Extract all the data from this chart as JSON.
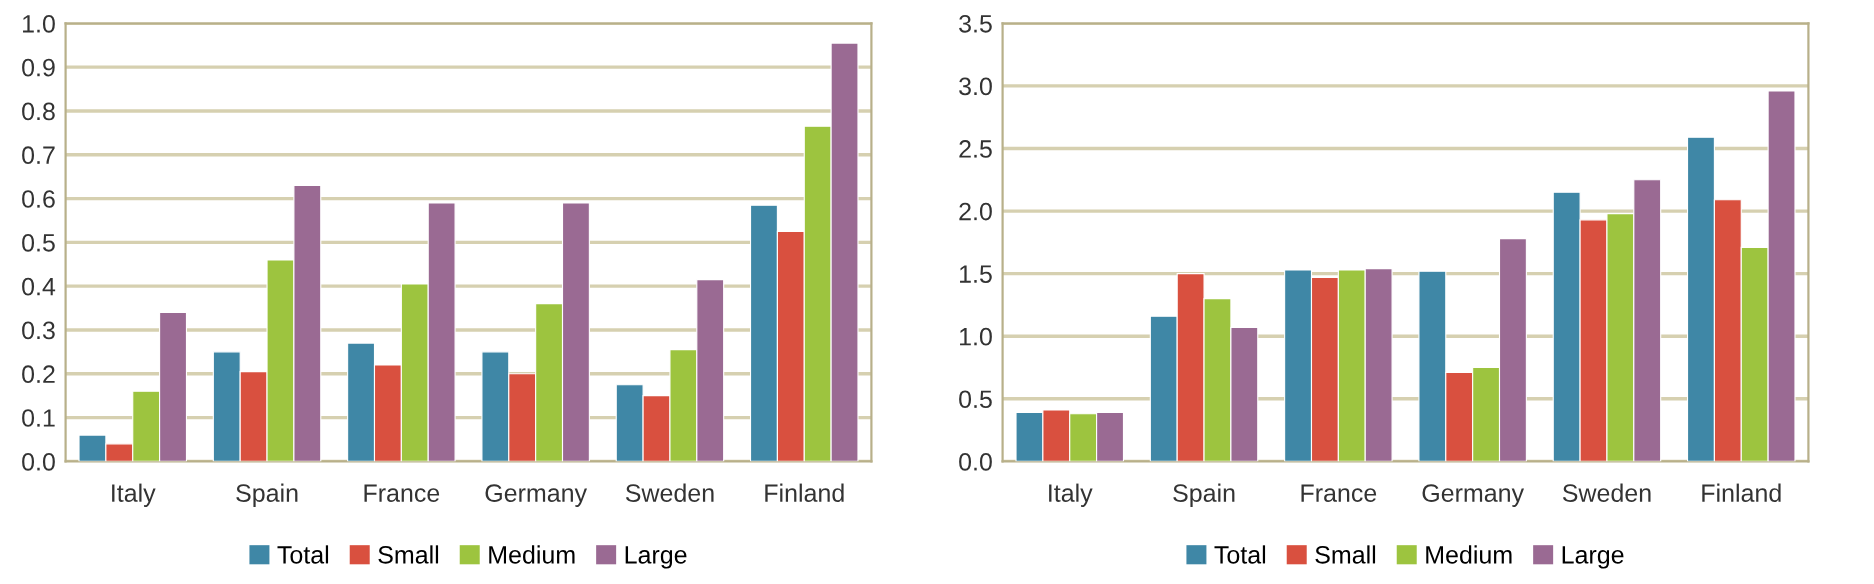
{
  "chart_data": [
    {
      "type": "bar",
      "categories": [
        "Italy",
        "Spain",
        "France",
        "Germany",
        "Sweden",
        "Finland"
      ],
      "ylim": [
        0,
        1.0
      ],
      "yticks": [
        {
          "value": 0,
          "label": "0.0"
        },
        0.1,
        0.2,
        0.3,
        0.4,
        0.5,
        0.6,
        0.7,
        0.8,
        0.9,
        {
          "value": 1,
          "label": "1.0"
        }
      ],
      "grid": "y",
      "legend": "bottom",
      "series": [
        {
          "name": "Total",
          "color": "#3f87a6",
          "values": [
            0.06,
            0.25,
            0.27,
            0.25,
            0.175,
            0.585
          ]
        },
        {
          "name": "Small",
          "color": "#d9503f",
          "values": [
            0.04,
            0.205,
            0.22,
            0.2,
            0.15,
            0.525
          ]
        },
        {
          "name": "Medium",
          "color": "#9dc43f",
          "values": [
            0.16,
            0.46,
            0.405,
            0.36,
            0.255,
            0.765
          ]
        },
        {
          "name": "Large",
          "color": "#9a6a93",
          "values": [
            0.34,
            0.63,
            0.59,
            0.59,
            0.415,
            0.955
          ]
        }
      ]
    },
    {
      "type": "bar",
      "categories": [
        "Italy",
        "Spain",
        "France",
        "Germany",
        "Sweden",
        "Finland"
      ],
      "ylim": [
        0,
        3.5
      ],
      "yticks": [
        {
          "value": 0,
          "label": "0.0"
        },
        0.5,
        {
          "value": 1,
          "label": "1.0"
        },
        1.5,
        {
          "value": 2,
          "label": "2.0"
        },
        2.5,
        {
          "value": 3,
          "label": "3.0"
        },
        3.5
      ],
      "grid": "y",
      "legend": "bottom",
      "series": [
        {
          "name": "Total",
          "color": "#3f87a6",
          "values": [
            0.39,
            1.16,
            1.53,
            1.52,
            2.15,
            2.59
          ]
        },
        {
          "name": "Small",
          "color": "#d9503f",
          "values": [
            0.41,
            1.5,
            1.47,
            0.71,
            1.93,
            2.09
          ]
        },
        {
          "name": "Medium",
          "color": "#9dc43f",
          "values": [
            0.38,
            1.3,
            1.53,
            0.75,
            1.98,
            1.71
          ]
        },
        {
          "name": "Large",
          "color": "#9a6a93",
          "values": [
            0.39,
            1.07,
            1.54,
            1.78,
            2.25,
            2.96
          ]
        }
      ]
    }
  ]
}
